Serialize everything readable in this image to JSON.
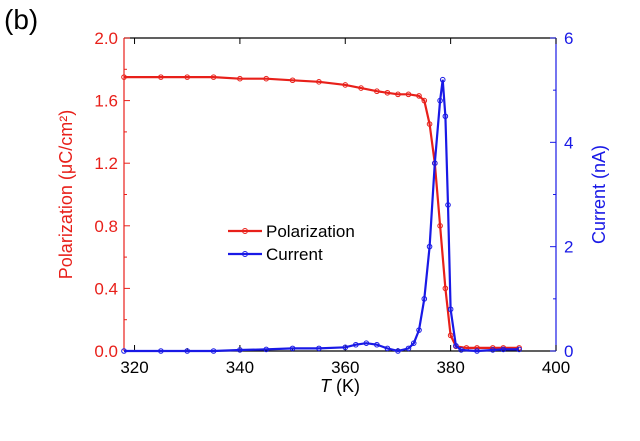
{
  "panel_label": "(b)",
  "chart_data": {
    "type": "line",
    "x_label_var": "T",
    "x_label_unit": " (K)",
    "y_left_label": "Polarization (μC/cm²)",
    "y_right_label": "Current (nA)",
    "xlim": [
      318,
      400
    ],
    "ylim_left": [
      0,
      2.0
    ],
    "ylim_right": [
      0,
      6
    ],
    "x_ticks": [
      320,
      340,
      360,
      380,
      400
    ],
    "y_left_ticks": [
      "0.0",
      "0.4",
      "0.8",
      "1.2",
      "1.6",
      "2.0"
    ],
    "y_right_ticks": [
      "0",
      "2",
      "4",
      "6"
    ],
    "grid": false,
    "legend_position": "center",
    "colors": {
      "polarization": "#e8201a",
      "current": "#1919e6"
    },
    "series": [
      {
        "name": "Polarization",
        "axis": "left",
        "x": [
          318,
          325,
          330,
          335,
          340,
          345,
          350,
          355,
          360,
          363,
          366,
          368,
          370,
          372,
          374,
          375,
          376,
          377,
          378,
          379,
          380,
          381,
          383,
          385,
          388,
          390,
          393
        ],
        "y": [
          1.75,
          1.75,
          1.75,
          1.75,
          1.74,
          1.74,
          1.73,
          1.72,
          1.7,
          1.68,
          1.66,
          1.65,
          1.64,
          1.64,
          1.63,
          1.6,
          1.45,
          1.2,
          0.8,
          0.4,
          0.1,
          0.03,
          0.02,
          0.02,
          0.02,
          0.02,
          0.02
        ]
      },
      {
        "name": "Current",
        "axis": "right",
        "x": [
          318,
          325,
          330,
          335,
          340,
          345,
          350,
          355,
          360,
          362,
          364,
          366,
          368,
          370,
          372,
          373,
          374,
          375,
          376,
          377,
          378,
          378.5,
          379,
          379.5,
          380,
          381,
          382,
          385,
          388,
          390,
          393
        ],
        "y": [
          0.0,
          0.0,
          0.0,
          0.0,
          0.02,
          0.03,
          0.05,
          0.05,
          0.07,
          0.12,
          0.15,
          0.12,
          0.05,
          0.0,
          0.05,
          0.15,
          0.4,
          1.0,
          2.0,
          3.6,
          4.8,
          5.2,
          4.5,
          2.8,
          0.8,
          0.1,
          0.02,
          0.0,
          0.02,
          0.03,
          0.03
        ]
      }
    ]
  }
}
